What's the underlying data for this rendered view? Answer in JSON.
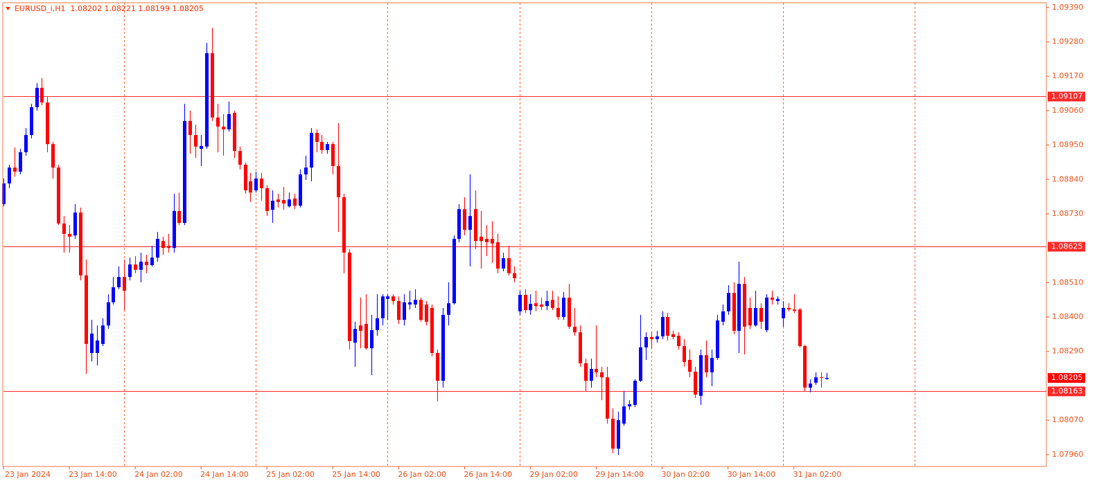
{
  "chart_data": {
    "type": "candlestick",
    "title": "EURUSD_i,H1  1.08202 1.08221 1.08199 1.08205",
    "up_color": "#0000ff",
    "down_color": "#ff0000",
    "level_color": "#ff2a2a",
    "grid_color": "#ff6a3d",
    "axis_color": "#f0551e",
    "ylim": [
      1.07922,
      1.09405
    ],
    "xlim": [
      0,
      190
    ],
    "yticks": [
      {
        "value": 1.0939,
        "label": "1.09390"
      },
      {
        "value": 1.0928,
        "label": "1.09280"
      },
      {
        "value": 1.0917,
        "label": "1.09170"
      },
      {
        "value": 1.0906,
        "label": "1.09060"
      },
      {
        "value": 1.0895,
        "label": "1.08950"
      },
      {
        "value": 1.0884,
        "label": "1.08840"
      },
      {
        "value": 1.0873,
        "label": "1.08730"
      },
      {
        "value": 1.0851,
        "label": "1.08510"
      },
      {
        "value": 1.084,
        "label": "1.08400"
      },
      {
        "value": 1.0829,
        "label": "1.08290"
      },
      {
        "value": 1.0807,
        "label": "1.08070"
      },
      {
        "value": 1.0796,
        "label": "1.07960"
      }
    ],
    "xticks": [
      {
        "value": 0,
        "label": "23 Jan 2024"
      },
      {
        "value": 12,
        "label": "23 Jan 14:00"
      },
      {
        "value": 24,
        "label": "24 Jan 02:00"
      },
      {
        "value": 36,
        "label": "24 Jan 14:00"
      },
      {
        "value": 48,
        "label": "25 Jan 02:00"
      },
      {
        "value": 60,
        "label": "25 Jan 14:00"
      },
      {
        "value": 72,
        "label": "26 Jan 02:00"
      },
      {
        "value": 84,
        "label": "26 Jan 14:00"
      },
      {
        "value": 96,
        "label": "29 Jan 02:00"
      },
      {
        "value": 108,
        "label": "29 Jan 14:00"
      },
      {
        "value": 120,
        "label": "30 Jan 02:00"
      },
      {
        "value": 132,
        "label": "30 Jan 14:00"
      },
      {
        "value": 144,
        "label": "31 Jan 02:00"
      }
    ],
    "xgrid": [
      22,
      46,
      70,
      94,
      118,
      142,
      166
    ],
    "levels": [
      {
        "value": 1.09107,
        "label": "1.09107"
      },
      {
        "value": 1.08625,
        "label": "1.08625"
      },
      {
        "value": 1.08163,
        "label": "1.08163"
      }
    ],
    "price_tag": {
      "value": 1.08205,
      "label": "1.08205"
    },
    "open": [
      1.08761,
      1.08827,
      1.08878,
      1.08865,
      1.08927,
      1.08982,
      1.09071,
      1.09133,
      1.09086,
      1.08953,
      1.08878,
      1.08699,
      1.08666,
      1.08661,
      1.08734,
      1.08533,
      1.08285,
      1.08285,
      1.08314,
      1.08373,
      1.08447,
      1.08495,
      1.08528,
      1.08528,
      1.08568,
      1.08551,
      1.08577,
      1.08566,
      1.0859,
      1.08643,
      1.08628,
      1.08621,
      1.08739,
      1.08701,
      1.09027,
      1.08982,
      1.08938,
      1.08945,
      1.09244,
      1.09038,
      1.09009,
      1.09,
      1.09053,
      1.08931,
      1.08887,
      1.08834,
      1.08805,
      1.08843,
      1.08812,
      1.08743,
      1.08776,
      1.08774,
      1.08754,
      1.08779,
      1.08756,
      1.08856,
      1.08878,
      1.08989,
      1.0896,
      1.08934,
      1.08953,
      1.08883,
      1.08783,
      1.08606,
      1.08318,
      1.08373,
      1.08378,
      1.083,
      1.08358,
      1.08396,
      1.08458,
      1.08466,
      1.08451,
      1.08391,
      1.0844,
      1.0844,
      1.08455,
      1.0844,
      1.08429,
      1.08285,
      1.08196,
      1.08407,
      1.08444,
      1.0865,
      1.08745,
      1.08679,
      1.08745,
      1.08657,
      1.0865,
      1.0865,
      1.08639,
      1.08555,
      1.08588,
      1.0854,
      1.08418,
      1.08471,
      1.08422,
      1.08444,
      1.0844,
      1.08435,
      1.08455,
      1.08429,
      1.084,
      1.08462,
      1.08369,
      1.08351,
      1.08252,
      1.08196,
      1.08234,
      1.08223,
      1.08207,
      1.08075,
      1.07979,
      1.08059,
      1.08114,
      1.08119,
      1.08196,
      1.08303,
      1.08336,
      1.08329,
      1.08338,
      1.084,
      1.08345,
      1.0834,
      1.08307,
      1.08263,
      1.08225,
      1.08148,
      1.08278,
      1.08223,
      1.08269,
      1.08385,
      1.08418,
      1.08477,
      1.08356,
      1.08506,
      1.08429,
      1.08373,
      1.08429,
      1.08358,
      1.08462,
      1.08451,
      1.08396,
      1.08429,
      1.08424,
      1.08424,
      1.08307,
      1.08174,
      1.0819,
      1.08207,
      1.08202
    ],
    "high": [
      1.08843,
      1.08887,
      1.08942,
      1.08938,
      1.09004,
      1.09082,
      1.09148,
      1.09164,
      1.09104,
      1.0896,
      1.08887,
      1.08723,
      1.08694,
      1.08761,
      1.0875,
      1.08584,
      1.08391,
      1.08373,
      1.08396,
      1.08473,
      1.08528,
      1.08562,
      1.08584,
      1.0859,
      1.08595,
      1.08606,
      1.08599,
      1.08628,
      1.08672,
      1.08657,
      1.08666,
      1.08794,
      1.08798,
      1.09082,
      1.0906,
      1.09015,
      1.08982,
      1.09277,
      1.09325,
      1.09082,
      1.09049,
      1.09089,
      1.0906,
      1.08945,
      1.08894,
      1.08861,
      1.08865,
      1.08861,
      1.08821,
      1.08805,
      1.08794,
      1.08816,
      1.08798,
      1.08794,
      1.08872,
      1.08916,
      1.09004,
      1.09,
      1.08982,
      1.0896,
      1.0896,
      1.0902,
      1.08794,
      1.08617,
      1.08385,
      1.08462,
      1.08473,
      1.08407,
      1.08473,
      1.08473,
      1.08473,
      1.08473,
      1.08466,
      1.08473,
      1.08484,
      1.08489,
      1.08462,
      1.08451,
      1.0844,
      1.08296,
      1.08429,
      1.08511,
      1.08661,
      1.08761,
      1.08783,
      1.08856,
      1.08805,
      1.08739,
      1.08694,
      1.08706,
      1.08666,
      1.08606,
      1.08628,
      1.08562,
      1.08484,
      1.08489,
      1.08473,
      1.08484,
      1.08462,
      1.08484,
      1.08484,
      1.08466,
      1.0848,
      1.08506,
      1.08429,
      1.08373,
      1.08267,
      1.08267,
      1.08373,
      1.08241,
      1.08241,
      1.08108,
      1.08097,
      1.08163,
      1.08134,
      1.08201,
      1.08407,
      1.08351,
      1.08351,
      1.08356,
      1.08418,
      1.08413,
      1.08356,
      1.08351,
      1.08329,
      1.08296,
      1.08241,
      1.08296,
      1.08325,
      1.08296,
      1.08407,
      1.0844,
      1.08502,
      1.08511,
      1.08577,
      1.08528,
      1.08462,
      1.08484,
      1.08444,
      1.08473,
      1.08484,
      1.08466,
      1.08451,
      1.08444,
      1.08473,
      1.08429,
      1.08311,
      1.08201,
      1.08223,
      1.08223,
      1.08221
    ],
    "low": [
      1.08754,
      1.08812,
      1.08849,
      1.08856,
      1.08916,
      1.08971,
      1.0906,
      1.09077,
      1.08927,
      1.08843,
      1.08694,
      1.08606,
      1.08606,
      1.0865,
      1.08517,
      1.08218,
      1.08258,
      1.08245,
      1.08307,
      1.08362,
      1.0844,
      1.08489,
      1.08422,
      1.08517,
      1.0854,
      1.08511,
      1.0854,
      1.08562,
      1.08577,
      1.08599,
      1.08606,
      1.08606,
      1.08694,
      1.08694,
      1.08922,
      1.08909,
      1.08883,
      1.08938,
      1.09027,
      1.08927,
      1.08916,
      1.08993,
      1.08909,
      1.08872,
      1.08794,
      1.08768,
      1.08798,
      1.08772,
      1.08723,
      1.08701,
      1.0875,
      1.08743,
      1.0875,
      1.08745,
      1.0875,
      1.08838,
      1.08834,
      1.08927,
      1.08922,
      1.08922,
      1.08856,
      1.08672,
      1.0854,
      1.08296,
      1.08241,
      1.083,
      1.08296,
      1.08214,
      1.0834,
      1.08373,
      1.08391,
      1.0844,
      1.08378,
      1.08373,
      1.08424,
      1.08429,
      1.08385,
      1.08373,
      1.08274,
      1.0813,
      1.08174,
      1.08373,
      1.0844,
      1.08639,
      1.08661,
      1.08562,
      1.08617,
      1.08555,
      1.08595,
      1.08573,
      1.0854,
      1.08546,
      1.08533,
      1.08511,
      1.08407,
      1.08413,
      1.08407,
      1.08418,
      1.08422,
      1.08422,
      1.08422,
      1.08391,
      1.08391,
      1.08362,
      1.0834,
      1.08241,
      1.08163,
      1.08174,
      1.08207,
      1.08134,
      1.08059,
      1.07964,
      1.07959,
      1.08052,
      1.08103,
      1.08112,
      1.08192,
      1.08263,
      1.083,
      1.08318,
      1.08329,
      1.08325,
      1.08329,
      1.08296,
      1.08241,
      1.08207,
      1.08141,
      1.08119,
      1.08207,
      1.08179,
      1.08263,
      1.08373,
      1.08407,
      1.08345,
      1.08285,
      1.0828,
      1.08362,
      1.08369,
      1.08362,
      1.08351,
      1.0844,
      1.0844,
      1.08369,
      1.08418,
      1.08413,
      1.08303,
      1.08163,
      1.08159,
      1.08183,
      1.08174,
      1.08199
    ],
    "close": [
      1.08827,
      1.08878,
      1.08865,
      1.08927,
      1.08982,
      1.09071,
      1.09133,
      1.09086,
      1.08953,
      1.08878,
      1.08699,
      1.08666,
      1.08657,
      1.08734,
      1.08533,
      1.08314,
      1.08347,
      1.08325,
      1.08373,
      1.08447,
      1.08495,
      1.08528,
      1.08484,
      1.08568,
      1.08551,
      1.08577,
      1.08566,
      1.0859,
      1.0865,
      1.08621,
      1.08621,
      1.08739,
      1.08701,
      1.09027,
      1.08982,
      1.08945,
      1.08947,
      1.09244,
      1.09038,
      1.09009,
      1.09,
      1.09049,
      1.08931,
      1.08887,
      1.08805,
      1.08798,
      1.08843,
      1.08812,
      1.08739,
      1.08772,
      1.08768,
      1.08763,
      1.08776,
      1.08756,
      1.08856,
      1.08878,
      1.08989,
      1.0896,
      1.08934,
      1.08953,
      1.08883,
      1.08783,
      1.08606,
      1.08323,
      1.08362,
      1.08356,
      1.083,
      1.08358,
      1.08396,
      1.08466,
      1.08466,
      1.08451,
      1.08391,
      1.08447,
      1.08447,
      1.08455,
      1.08391,
      1.08385,
      1.08285,
      1.08196,
      1.08407,
      1.08444,
      1.0865,
      1.08745,
      1.08679,
      1.08723,
      1.08643,
      1.08643,
      1.08639,
      1.08635,
      1.08555,
      1.08588,
      1.0854,
      1.08524,
      1.08471,
      1.08422,
      1.08442,
      1.08435,
      1.08433,
      1.08451,
      1.08429,
      1.084,
      1.08462,
      1.08369,
      1.08351,
      1.08252,
      1.08196,
      1.08234,
      1.08223,
      1.08207,
      1.08075,
      1.07979,
      1.0807,
      1.08114,
      1.08121,
      1.08196,
      1.08303,
      1.08336,
      1.08329,
      1.08338,
      1.084,
      1.0834,
      1.08336,
      1.08307,
      1.08256,
      1.08225,
      1.08152,
      1.08278,
      1.08223,
      1.08269,
      1.08389,
      1.08418,
      1.08477,
      1.08356,
      1.08506,
      1.08369,
      1.08373,
      1.08429,
      1.08385,
      1.08462,
      1.08455,
      1.08458,
      1.08429,
      1.08424,
      1.0842,
      1.08307,
      1.08174,
      1.08187,
      1.08207,
      1.08205,
      1.08205
    ]
  }
}
